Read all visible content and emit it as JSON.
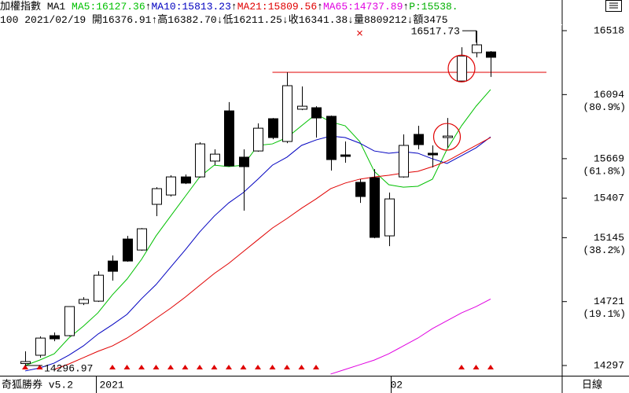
{
  "chart_data": {
    "type": "candlestick",
    "header_line1": [
      {
        "text": "加權指數",
        "color": "#000000"
      },
      {
        "text": "MA1",
        "color": "#000000"
      }
    ],
    "header_line1_tail": {
      "text": "P:15538.",
      "color": "#00b000"
    },
    "header_line2": [
      {
        "text": "100"
      },
      {
        "text": "2021/02/19"
      },
      {
        "text": "開16376.91",
        "arrow": "↑"
      },
      {
        "text": "高16382.70",
        "arrow": "↓"
      },
      {
        "text": "低16211.25",
        "arrow": "↓"
      },
      {
        "text": "收16341.38",
        "arrow": "↓"
      },
      {
        "text": "量8809212",
        "arrow": "↓"
      },
      {
        "text": "額3475"
      }
    ],
    "categories": [
      null,
      null,
      null,
      null,
      null,
      "2021",
      null,
      null,
      null,
      null,
      null,
      null,
      null,
      null,
      null,
      null,
      null,
      null,
      null,
      null,
      null,
      null,
      null,
      null,
      null,
      "02",
      null,
      null,
      null,
      null,
      null,
      null,
      null
    ],
    "candles": {
      "open": [
        14310,
        14365,
        14495,
        14495,
        14709,
        14724,
        14990,
        15136,
        15063,
        15366,
        15428,
        15548,
        15548,
        15653,
        15986,
        15679,
        15720,
        15934,
        15783,
        15997,
        16007,
        15950,
        15694,
        15512,
        15543,
        15157,
        15548,
        15830,
        15705,
        15809,
        16184,
        16372,
        16376.91
      ],
      "high": [
        14391,
        14490,
        14516,
        14688,
        14750,
        14922,
        15027,
        15157,
        15209,
        15480,
        15559,
        15564,
        15778,
        15731,
        16044,
        15731,
        15903,
        15939,
        16242,
        16148,
        16017,
        15955,
        15783,
        15533,
        15600,
        15444,
        15830,
        15887,
        15757,
        15939,
        16408,
        16517.73,
        16382.7
      ],
      "low": [
        14296.97,
        14349,
        14458,
        14490,
        14698,
        14719,
        14860,
        14985,
        15058,
        15288,
        15418,
        15501,
        15543,
        15626,
        15616,
        15324,
        15715,
        15798,
        15772,
        15991,
        15809,
        15590,
        15642,
        15376,
        15141,
        15089,
        15543,
        15731,
        15611,
        15741,
        16179,
        16341,
        16211.25
      ],
      "close": [
        14323,
        14479,
        14474,
        14688,
        14735,
        14896,
        14922,
        14990,
        15204,
        15470,
        15548,
        15507,
        15767,
        15699,
        15621,
        15616,
        15871,
        15809,
        16153,
        16017,
        15939,
        15663,
        15684,
        15418,
        15147,
        15402,
        15757,
        15762,
        15694,
        15819,
        16350,
        16424,
        16341.38
      ],
      "up_color": "#ffffff",
      "down_color": "#000000",
      "edge_color": "#000000"
    },
    "series": [
      {
        "name": "MA5:16127.36",
        "arrow": "↑",
        "color": "#00c000",
        "values": [
          14297,
          14333,
          14375,
          14479,
          14558,
          14646,
          14766,
          14870,
          15001,
          15157,
          15288,
          15418,
          15548,
          15626,
          15616,
          15626,
          15757,
          15767,
          15809,
          15887,
          15965,
          15913,
          15887,
          15783,
          15585,
          15496,
          15480,
          15486,
          15533,
          15731,
          15887,
          16017,
          16127.36
        ]
      },
      {
        "name": "MA10:15813.23",
        "arrow": "↑",
        "color": "#0000c0",
        "values": [
          14261,
          14281,
          14313,
          14365,
          14427,
          14505,
          14568,
          14636,
          14740,
          14834,
          14949,
          15063,
          15183,
          15288,
          15376,
          15444,
          15533,
          15626,
          15679,
          15757,
          15793,
          15819,
          15809,
          15772,
          15720,
          15705,
          15715,
          15705,
          15668,
          15637,
          15689,
          15741,
          15813.23
        ]
      },
      {
        "name": "MA21:15809.56",
        "arrow": "↑",
        "color": "#e00000",
        "values": [
          null,
          null,
          14271,
          14307,
          14349,
          14391,
          14427,
          14479,
          14542,
          14610,
          14677,
          14750,
          14829,
          14907,
          14975,
          15053,
          15131,
          15209,
          15272,
          15340,
          15402,
          15470,
          15507,
          15533,
          15548,
          15559,
          15574,
          15585,
          15616,
          15653,
          15705,
          15757,
          15809.56
        ]
      },
      {
        "name": "MA65:14737.89",
        "arrow": "↑",
        "color": "#e000e0",
        "values": [
          null,
          null,
          null,
          null,
          null,
          null,
          null,
          null,
          null,
          null,
          null,
          null,
          null,
          null,
          null,
          null,
          null,
          null,
          null,
          null,
          null,
          14240,
          14271,
          14302,
          14333,
          14375,
          14427,
          14479,
          14542,
          14594,
          14646,
          14688,
          14737.89
        ]
      }
    ],
    "ylim": [
      14245,
      16565
    ],
    "yticks": [
      16518,
      16094,
      15669,
      15407,
      15145,
      14721,
      14297
    ],
    "pct_ticks": [
      {
        "value": 16094,
        "label": "(80.9%)"
      },
      {
        "value": 15669,
        "label": "(61.8%)"
      },
      {
        "value": 15145,
        "label": "(38.2%)"
      },
      {
        "value": 14721,
        "label": "(19.1%)"
      }
    ],
    "reference_line_candle": 18,
    "reference_color": "#e00000",
    "highlight_candles": [
      29,
      30
    ],
    "cross_marks": [
      {
        "index": 23,
        "value": 16502
      }
    ],
    "signals": [
      0,
      1,
      6,
      7,
      8,
      9,
      10,
      11,
      12,
      13,
      14,
      15,
      16,
      17,
      18,
      19,
      20,
      30,
      31,
      32
    ],
    "signal_color": "#e00000",
    "high_annotation_candle": 31,
    "low_annotation_candle": 0,
    "footer_left": "奇狐勝券 v5.2",
    "footer_right": "日線"
  }
}
